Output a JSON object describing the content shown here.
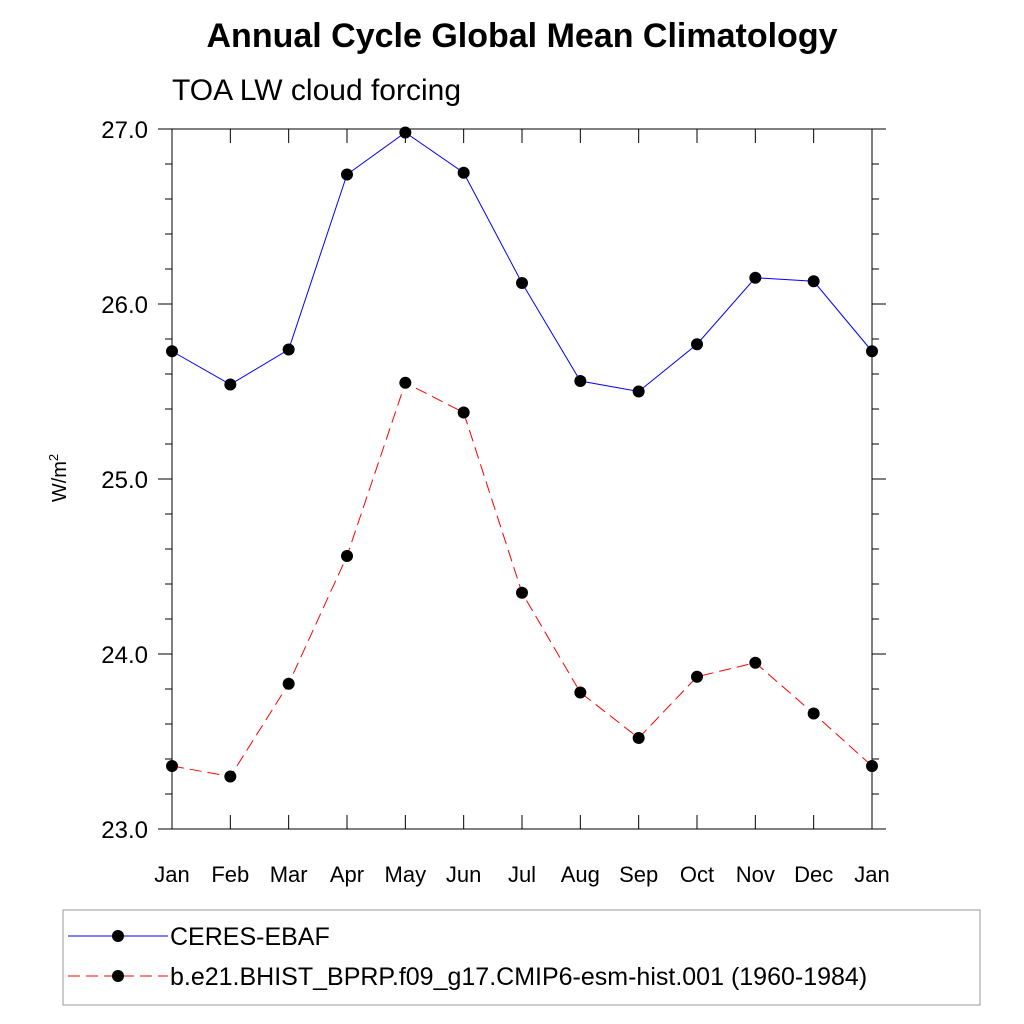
{
  "chart_data": {
    "type": "line",
    "title": "Annual Cycle Global Mean Climatology",
    "subtitle": "TOA LW cloud forcing",
    "xlabel": "",
    "ylabel_base": "W/m",
    "ylabel_sup": "2",
    "categories": [
      "Jan",
      "Feb",
      "Mar",
      "Apr",
      "May",
      "Jun",
      "Jul",
      "Aug",
      "Sep",
      "Oct",
      "Nov",
      "Dec",
      "Jan"
    ],
    "ylim": [
      23.0,
      27.0
    ],
    "yticks": [
      "23.0",
      "24.0",
      "25.0",
      "26.0",
      "27.0"
    ],
    "series": [
      {
        "name": "CERES-EBAF",
        "color": "#0000ff",
        "dash": "solid",
        "values": [
          25.73,
          25.54,
          25.74,
          26.74,
          26.98,
          26.75,
          26.12,
          25.56,
          25.5,
          25.77,
          26.15,
          26.13,
          25.73
        ]
      },
      {
        "name": "b.e21.BHIST_BPRP.f09_g17.CMIP6-esm-hist.001 (1960-1984)",
        "color": "#ff0000",
        "dash": "dashed",
        "values": [
          23.36,
          23.3,
          23.83,
          24.56,
          25.55,
          25.38,
          24.35,
          23.78,
          23.52,
          23.87,
          23.95,
          23.66,
          23.36
        ]
      }
    ],
    "grid": false,
    "legend_placement": "bottom"
  }
}
